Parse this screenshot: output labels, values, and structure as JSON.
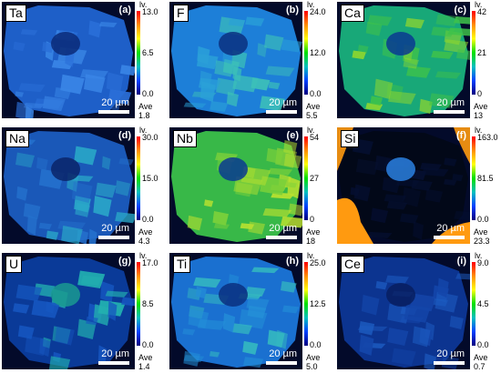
{
  "panels": [
    {
      "element": "Ta",
      "letter": "(a)",
      "level_label": "lv.",
      "max": "13.0",
      "mid": "6.5",
      "min": "0.0",
      "scale": "20 µm",
      "ave_label": "Ave",
      "ave": "1.8",
      "bg": "#1e5fc8",
      "grain": "#2a6fd8",
      "bright": "#3a86e6",
      "core": "#0a2a78"
    },
    {
      "element": "F",
      "letter": "(b)",
      "level_label": "lv.",
      "max": "24.0",
      "mid": "12.0",
      "min": "0.0",
      "scale": "20 µm",
      "ave_label": "Ave",
      "ave": "5.5",
      "bg": "#1d7fd8",
      "grain": "#2aa0d8",
      "bright": "#3cc0b8",
      "core": "#0a3080"
    },
    {
      "element": "Ca",
      "letter": "(c)",
      "level_label": "lv.",
      "max": "42",
      "mid": "21",
      "min": "0",
      "scale": "20 µm",
      "ave_label": "Ave",
      "ave": "13",
      "bg": "#18a878",
      "grain": "#3fc24a",
      "bright": "#8ed630",
      "core": "#0a3a90"
    },
    {
      "element": "Na",
      "letter": "(d)",
      "level_label": "lv.",
      "max": "30.0",
      "mid": "15.0",
      "min": "0.0",
      "scale": "20 µm",
      "ave_label": "Ave",
      "ave": "4.3",
      "bg": "#1a58b8",
      "grain": "#2470cc",
      "bright": "#2aa8c8",
      "core": "#0a2468"
    },
    {
      "element": "Nb",
      "letter": "(e)",
      "level_label": "lv.",
      "max": "54",
      "mid": "27",
      "min": "0",
      "scale": "20 µm",
      "ave_label": "Ave",
      "ave": "18",
      "bg": "#38b848",
      "grain": "#7ad03a",
      "bright": "#b8e030",
      "core": "#0a3a90"
    },
    {
      "element": "Si",
      "letter": "(f)",
      "level_label": "lv.",
      "max": "163.0",
      "mid": "81.5",
      "min": "0.0",
      "scale": "20 µm",
      "ave_label": "Ave",
      "ave": "23.3",
      "bg": "#020818",
      "grain": "#050f30",
      "bright": "#ff9a10",
      "core": "#2a80e0"
    },
    {
      "element": "U",
      "letter": "(g)",
      "level_label": "lv.",
      "max": "17.0",
      "mid": "8.5",
      "min": "0.0",
      "scale": "20 µm",
      "ave_label": "Ave",
      "ave": "1.4",
      "bg": "#0a3a98",
      "grain": "#1656c0",
      "bright": "#22b0b0",
      "core": "#1a9a90"
    },
    {
      "element": "Ti",
      "letter": "(h)",
      "level_label": "lv.",
      "max": "25.0",
      "mid": "12.5",
      "min": "0.0",
      "scale": "20 µm",
      "ave_label": "Ave",
      "ave": "5.0",
      "bg": "#1a70d0",
      "grain": "#2490d8",
      "bright": "#34b8c0",
      "core": "#0a3080"
    },
    {
      "element": "Ce",
      "letter": "(i)",
      "level_label": "lv.",
      "max": "9.0",
      "mid": "4.5",
      "min": "0.0",
      "scale": "20 µm",
      "ave_label": "Ave",
      "ave": "0.7",
      "bg": "#0c3490",
      "grain": "#1446aa",
      "bright": "#1e5ec4",
      "core": "#081e60"
    }
  ]
}
